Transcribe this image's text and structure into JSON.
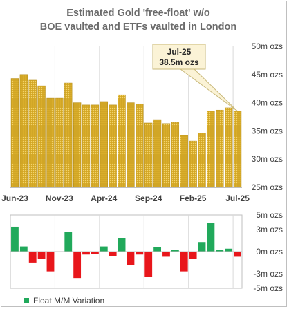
{
  "chart_data": [
    {
      "type": "bar",
      "title": "Estimated Gold 'free-float' w/o BOE vaulted and ETFs vaulted in London",
      "title_lines": [
        "Estimated Gold 'free-float' w/o",
        "BOE vaulted and ETFs vaulted in London"
      ],
      "x_tick_labels": [
        "Jun-23",
        "Nov-23",
        "Apr-24",
        "Sep-24",
        "Feb-25",
        "Jul-25"
      ],
      "y_tick_labels": [
        "25m ozs",
        "30m ozs",
        "35m ozs",
        "40m ozs",
        "45m ozs",
        "50m ozs"
      ],
      "ylim": [
        25,
        50
      ],
      "ylabel": "",
      "xlabel": "",
      "grid": "vertical",
      "bar_color": "#d4a927",
      "categories": [
        "Jun-23",
        "Jul-23",
        "Aug-23",
        "Sep-23",
        "Oct-23",
        "Nov-23",
        "Dec-23",
        "Jan-24",
        "Feb-24",
        "Mar-24",
        "Apr-24",
        "May-24",
        "Jun-24",
        "Jul-24",
        "Aug-24",
        "Sep-24",
        "Oct-24",
        "Nov-24",
        "Dec-24",
        "Jan-25",
        "Feb-25",
        "Mar-25",
        "Apr-25",
        "May-25",
        "Jun-25",
        "Jul-25"
      ],
      "values": [
        44.3,
        45.0,
        44.0,
        43.0,
        40.8,
        40.8,
        43.5,
        40.0,
        39.6,
        39.6,
        40.2,
        39.6,
        41.4,
        40.0,
        39.8,
        36.4,
        37.0,
        36.3,
        36.5,
        34.2,
        33.2,
        34.6,
        38.5,
        38.7,
        39.1,
        38.5
      ],
      "annotation": {
        "lines": [
          "Jul-25",
          "38.5m ozs"
        ],
        "category": "Jul-25"
      }
    },
    {
      "type": "bar",
      "series": [
        {
          "name": "Float M/M Variation",
          "values": [
            3.4,
            0.7,
            -1.5,
            -1.0,
            -2.7,
            0.0,
            2.7,
            -3.6,
            -0.4,
            -0.3,
            0.7,
            -0.6,
            1.8,
            -1.8,
            -0.4,
            -3.4,
            0.6,
            -0.7,
            0.2,
            -2.7,
            -1.0,
            1.3,
            3.9,
            0.2,
            0.4,
            -0.7
          ]
        }
      ],
      "categories": [
        "Jun-23",
        "Jul-23",
        "Aug-23",
        "Sep-23",
        "Oct-23",
        "Nov-23",
        "Dec-23",
        "Jan-24",
        "Feb-24",
        "Mar-24",
        "Apr-24",
        "May-24",
        "Jun-24",
        "Jul-24",
        "Aug-24",
        "Sep-24",
        "Oct-24",
        "Nov-24",
        "Dec-24",
        "Jan-25",
        "Feb-25",
        "Mar-25",
        "Apr-25",
        "May-25",
        "Jun-25",
        "Jul-25"
      ],
      "y_tick_labels": [
        "-5m ozs",
        "-3m ozs",
        "0m ozs",
        "3m ozs",
        "5m ozs"
      ],
      "ylim": [
        -5,
        5
      ],
      "positive_color": "#21a95b",
      "negative_color": "#e8161b",
      "grid": "vertical",
      "legend": "bottom-left"
    }
  ]
}
